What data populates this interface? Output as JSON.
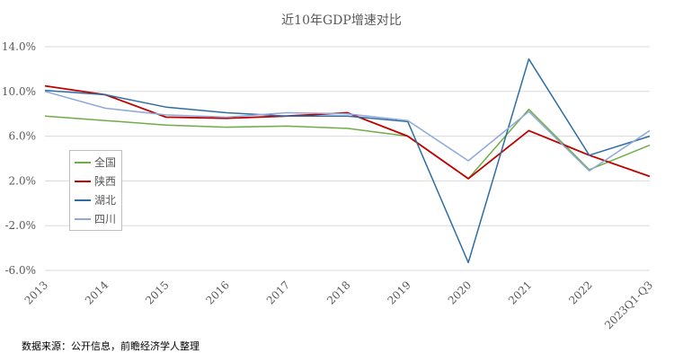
{
  "chart_data": {
    "type": "line",
    "title": "近10年GDP增速对比",
    "categories": [
      "2013",
      "2014",
      "2015",
      "2016",
      "2017",
      "2018",
      "2019",
      "2020",
      "2021",
      "2022",
      "2023Q1-Q3"
    ],
    "y_tick_labels": [
      "14.0%",
      "10.0%",
      "6.0%",
      "2.0%",
      "-2.0%",
      "-6.0%"
    ],
    "y_tick_values": [
      14,
      10,
      6,
      2,
      -2,
      -6
    ],
    "ylim": [
      -6,
      14
    ],
    "grid": true,
    "legend_position": "left",
    "series": [
      {
        "name": "全国",
        "color": "#70ad47",
        "values": [
          7.8,
          7.4,
          7.0,
          6.8,
          6.9,
          6.7,
          6.0,
          2.2,
          8.4,
          3.0,
          5.2
        ]
      },
      {
        "name": "陕西",
        "color": "#c00000",
        "values": [
          10.5,
          9.7,
          7.7,
          7.6,
          7.8,
          8.1,
          6.0,
          2.2,
          6.5,
          4.3,
          2.4
        ]
      },
      {
        "name": "湖北",
        "color": "#2e6da4",
        "values": [
          10.1,
          9.7,
          8.6,
          8.1,
          7.8,
          7.8,
          7.3,
          -5.3,
          12.9,
          4.3,
          6.0
        ]
      },
      {
        "name": "四川",
        "color": "#8ea9db",
        "values": [
          10.0,
          8.5,
          7.9,
          7.7,
          8.1,
          8.0,
          7.4,
          3.8,
          8.2,
          2.9,
          6.5
        ]
      }
    ]
  },
  "source_note": "数据来源：公开信息，前瞻经济学人整理"
}
